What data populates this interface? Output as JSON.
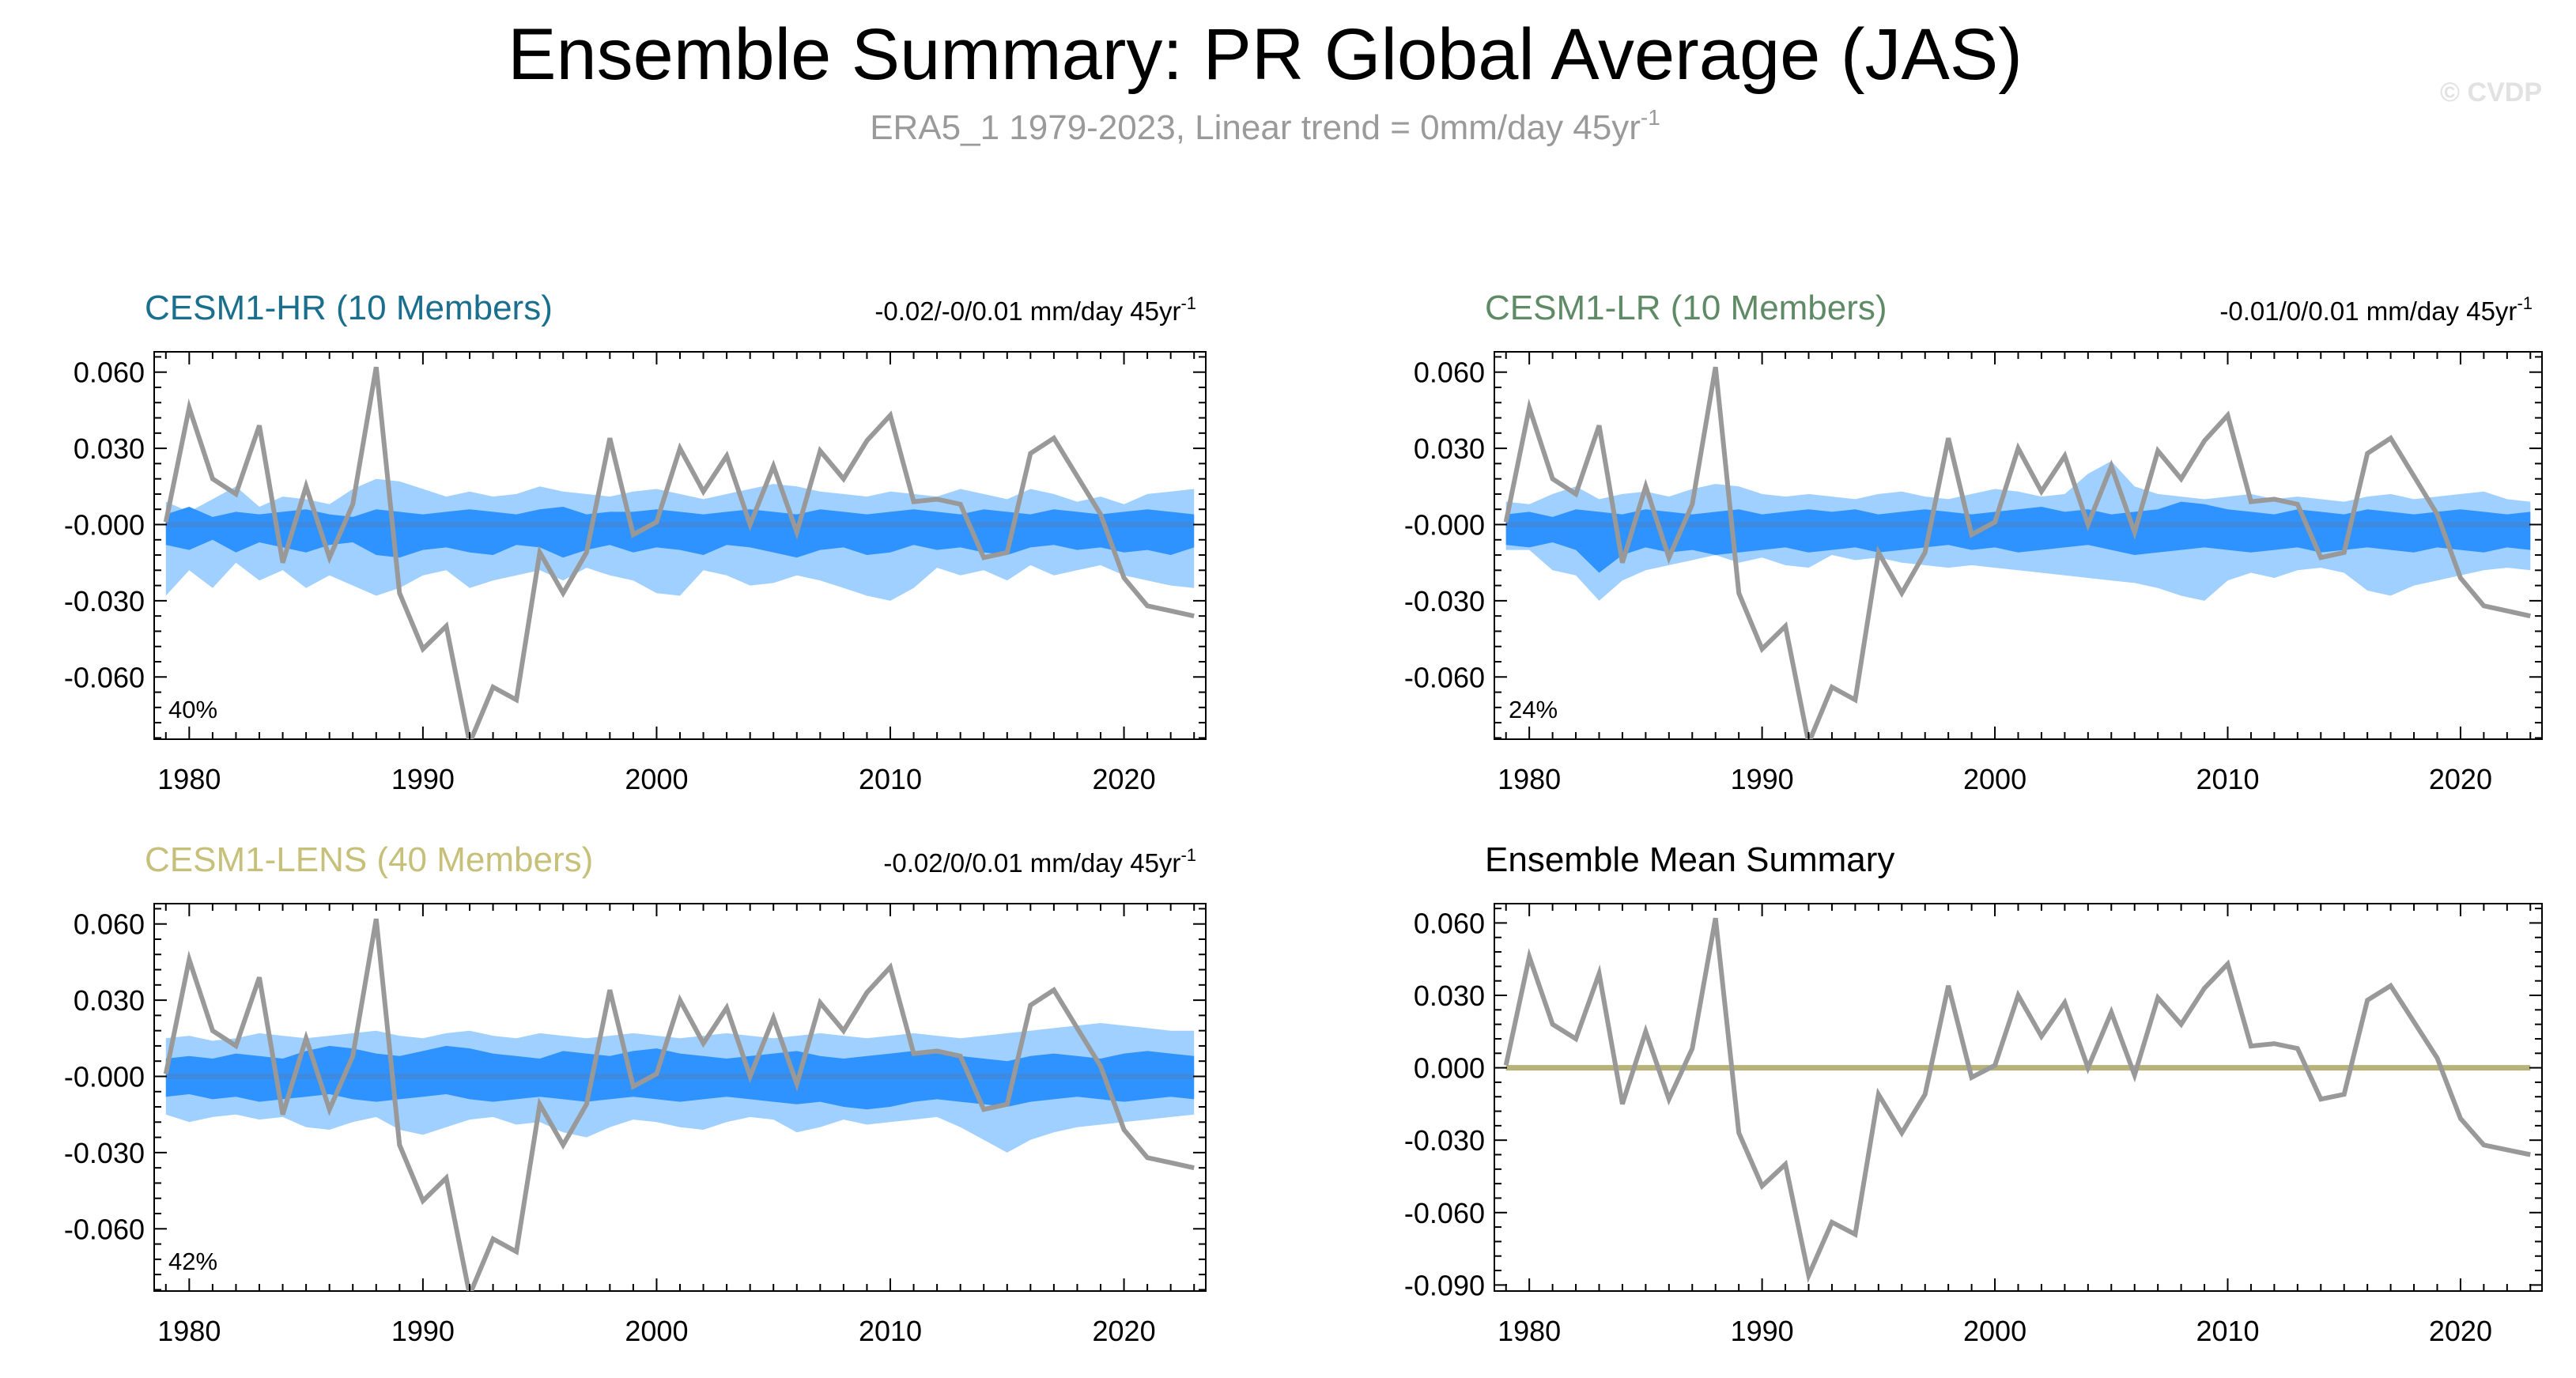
{
  "figure": {
    "title": "Ensemble Summary: PR Global Average (JAS)",
    "subtitle_main": "ERA5_1 1979-2023, Linear trend = 0mm/day 45yr",
    "subtitle_sup": "-1",
    "watermark": "© CVDP"
  },
  "colors": {
    "obs": "#999999",
    "band_outer": "#9fd0ff",
    "band_inner": "#2e92ff",
    "ens_mean_blue": "#3d8ae0",
    "ens_mean_olive": "#b7b27a",
    "hr_title": "#1a6e8e",
    "lr_title": "#5f8a66",
    "lens_title": "#c7c07a",
    "summary_title": "#000000"
  },
  "chart_data": [
    {
      "type": "area",
      "title": "CESM1-HR (10 Members)",
      "range_main": "-0.02/-0/0.01 mm/day 45yr",
      "range_sup": "-1",
      "percent_label": "40%",
      "xlim": [
        1978.5,
        2023.5
      ],
      "ylim": [
        -0.0845,
        0.068
      ],
      "xticks": [
        "1980",
        "1990",
        "2000",
        "2010",
        "2020"
      ],
      "yticks": [
        "0.060",
        "0.030",
        "-0.000",
        "-0.030",
        "-0.060"
      ],
      "x": [
        1979,
        1980,
        1981,
        1982,
        1983,
        1984,
        1985,
        1986,
        1987,
        1988,
        1989,
        1990,
        1991,
        1992,
        1993,
        1994,
        1995,
        1996,
        1997,
        1998,
        1999,
        2000,
        2001,
        2002,
        2003,
        2004,
        2005,
        2006,
        2007,
        2008,
        2009,
        2010,
        2011,
        2012,
        2013,
        2014,
        2015,
        2016,
        2017,
        2018,
        2019,
        2020,
        2021,
        2022,
        2023
      ],
      "observed": [
        0.001,
        0.046,
        0.018,
        0.012,
        0.039,
        -0.015,
        0.015,
        -0.013,
        0.008,
        0.062,
        -0.027,
        -0.049,
        -0.04,
        -0.086,
        -0.064,
        -0.069,
        -0.011,
        -0.027,
        -0.011,
        0.034,
        -0.004,
        0.001,
        0.03,
        0.013,
        0.027,
        0.0,
        0.023,
        -0.003,
        0.029,
        0.018,
        0.033,
        0.043,
        0.009,
        0.01,
        0.008,
        -0.013,
        -0.011,
        0.028,
        0.034,
        0.019,
        0.004,
        -0.021,
        -0.032,
        -0.034,
        -0.036
      ],
      "band_outer_upper": [
        0.009,
        0.005,
        0.01,
        0.015,
        0.007,
        0.011,
        0.01,
        0.008,
        0.014,
        0.018,
        0.017,
        0.014,
        0.011,
        0.013,
        0.011,
        0.012,
        0.015,
        0.013,
        0.012,
        0.011,
        0.013,
        0.014,
        0.012,
        0.01,
        0.012,
        0.014,
        0.016,
        0.015,
        0.013,
        0.012,
        0.011,
        0.013,
        0.012,
        0.011,
        0.014,
        0.012,
        0.01,
        0.014,
        0.012,
        0.009,
        0.011,
        0.008,
        0.012,
        0.013,
        0.014
      ],
      "band_outer_lower": [
        -0.028,
        -0.018,
        -0.025,
        -0.015,
        -0.022,
        -0.018,
        -0.025,
        -0.02,
        -0.024,
        -0.028,
        -0.025,
        -0.02,
        -0.018,
        -0.025,
        -0.022,
        -0.02,
        -0.018,
        -0.022,
        -0.017,
        -0.02,
        -0.022,
        -0.027,
        -0.028,
        -0.018,
        -0.02,
        -0.024,
        -0.023,
        -0.02,
        -0.022,
        -0.025,
        -0.028,
        -0.03,
        -0.025,
        -0.017,
        -0.02,
        -0.018,
        -0.022,
        -0.016,
        -0.02,
        -0.018,
        -0.016,
        -0.02,
        -0.022,
        -0.024,
        -0.025
      ],
      "band_inner_upper": [
        0.004,
        0.007,
        0.003,
        0.005,
        0.004,
        0.005,
        0.006,
        0.004,
        0.003,
        0.006,
        0.005,
        0.004,
        0.005,
        0.006,
        0.005,
        0.004,
        0.006,
        0.007,
        0.004,
        0.005,
        0.005,
        0.006,
        0.005,
        0.004,
        0.005,
        0.006,
        0.005,
        0.004,
        0.006,
        0.005,
        0.004,
        0.005,
        0.006,
        0.005,
        0.004,
        0.006,
        0.005,
        0.004,
        0.006,
        0.005,
        0.004,
        0.005,
        0.006,
        0.005,
        0.004
      ],
      "band_inner_lower": [
        -0.008,
        -0.01,
        -0.006,
        -0.011,
        -0.007,
        -0.009,
        -0.011,
        -0.008,
        -0.007,
        -0.012,
        -0.013,
        -0.01,
        -0.009,
        -0.011,
        -0.012,
        -0.008,
        -0.009,
        -0.013,
        -0.01,
        -0.008,
        -0.011,
        -0.009,
        -0.01,
        -0.012,
        -0.008,
        -0.009,
        -0.011,
        -0.013,
        -0.01,
        -0.009,
        -0.012,
        -0.011,
        -0.008,
        -0.01,
        -0.009,
        -0.011,
        -0.012,
        -0.009,
        -0.008,
        -0.01,
        -0.009,
        -0.011,
        -0.01,
        -0.012,
        -0.009
      ],
      "ensemble_mean": [
        0.0,
        0.0,
        0.0,
        0.0,
        0.0,
        0.0,
        0.0,
        0.0,
        0.0,
        0.0,
        0.0,
        0.0,
        0.0,
        0.0,
        0.0,
        0.0,
        0.0,
        0.0,
        0.0,
        0.0,
        0.0,
        0.0,
        0.0,
        0.0,
        0.0,
        0.0,
        0.0,
        0.0,
        0.0,
        0.0,
        0.0,
        0.0,
        0.0,
        0.0,
        0.0,
        0.0,
        0.0,
        0.0,
        0.0,
        0.0,
        0.0,
        0.0,
        0.0,
        0.0,
        0.0
      ]
    },
    {
      "type": "area",
      "title": "CESM1-LR (10 Members)",
      "range_main": "-0.01/0/0.01 mm/day 45yr",
      "range_sup": "-1",
      "percent_label": "24%",
      "xlim": [
        1978.5,
        2023.5
      ],
      "ylim": [
        -0.0845,
        0.068
      ],
      "xticks": [
        "1980",
        "1990",
        "2000",
        "2010",
        "2020"
      ],
      "yticks": [
        "0.060",
        "0.030",
        "-0.000",
        "-0.030",
        "-0.060"
      ],
      "x": [
        1979,
        1980,
        1981,
        1982,
        1983,
        1984,
        1985,
        1986,
        1987,
        1988,
        1989,
        1990,
        1991,
        1992,
        1993,
        1994,
        1995,
        1996,
        1997,
        1998,
        1999,
        2000,
        2001,
        2002,
        2003,
        2004,
        2005,
        2006,
        2007,
        2008,
        2009,
        2010,
        2011,
        2012,
        2013,
        2014,
        2015,
        2016,
        2017,
        2018,
        2019,
        2020,
        2021,
        2022,
        2023
      ],
      "observed": [
        0.001,
        0.046,
        0.018,
        0.012,
        0.039,
        -0.015,
        0.015,
        -0.013,
        0.008,
        0.062,
        -0.027,
        -0.049,
        -0.04,
        -0.086,
        -0.064,
        -0.069,
        -0.011,
        -0.027,
        -0.011,
        0.034,
        -0.004,
        0.001,
        0.03,
        0.013,
        0.027,
        0.0,
        0.023,
        -0.003,
        0.029,
        0.018,
        0.033,
        0.043,
        0.009,
        0.01,
        0.008,
        -0.013,
        -0.011,
        0.028,
        0.034,
        0.019,
        0.004,
        -0.021,
        -0.032,
        -0.034,
        -0.036
      ],
      "band_outer_upper": [
        0.009,
        0.008,
        0.012,
        0.015,
        0.01,
        0.012,
        0.013,
        0.011,
        0.014,
        0.016,
        0.015,
        0.012,
        0.011,
        0.012,
        0.011,
        0.01,
        0.012,
        0.013,
        0.011,
        0.01,
        0.012,
        0.014,
        0.013,
        0.011,
        0.012,
        0.02,
        0.025,
        0.015,
        0.012,
        0.011,
        0.01,
        0.011,
        0.012,
        0.01,
        0.011,
        0.01,
        0.009,
        0.011,
        0.012,
        0.01,
        0.011,
        0.012,
        0.013,
        0.01,
        0.009
      ],
      "band_outer_lower": [
        -0.01,
        -0.01,
        -0.018,
        -0.02,
        -0.03,
        -0.022,
        -0.018,
        -0.016,
        -0.014,
        -0.012,
        -0.015,
        -0.013,
        -0.016,
        -0.017,
        -0.012,
        -0.014,
        -0.013,
        -0.015,
        -0.016,
        -0.017,
        -0.016,
        -0.017,
        -0.018,
        -0.019,
        -0.02,
        -0.021,
        -0.022,
        -0.023,
        -0.025,
        -0.028,
        -0.03,
        -0.022,
        -0.019,
        -0.021,
        -0.018,
        -0.017,
        -0.019,
        -0.026,
        -0.028,
        -0.024,
        -0.022,
        -0.02,
        -0.018,
        -0.017,
        -0.018
      ],
      "band_inner_upper": [
        0.004,
        0.005,
        0.003,
        0.006,
        0.005,
        0.004,
        0.006,
        0.005,
        0.004,
        0.005,
        0.006,
        0.004,
        0.005,
        0.006,
        0.005,
        0.006,
        0.004,
        0.005,
        0.006,
        0.005,
        0.004,
        0.005,
        0.006,
        0.007,
        0.005,
        0.006,
        0.004,
        0.005,
        0.006,
        0.009,
        0.008,
        0.006,
        0.005,
        0.004,
        0.006,
        0.005,
        0.004,
        0.006,
        0.005,
        0.004,
        0.005,
        0.006,
        0.005,
        0.004,
        0.005
      ],
      "band_inner_lower": [
        -0.008,
        -0.009,
        -0.007,
        -0.01,
        -0.019,
        -0.012,
        -0.009,
        -0.011,
        -0.01,
        -0.012,
        -0.011,
        -0.01,
        -0.009,
        -0.011,
        -0.01,
        -0.009,
        -0.011,
        -0.01,
        -0.009,
        -0.008,
        -0.01,
        -0.009,
        -0.011,
        -0.01,
        -0.009,
        -0.008,
        -0.01,
        -0.012,
        -0.011,
        -0.01,
        -0.009,
        -0.01,
        -0.011,
        -0.01,
        -0.009,
        -0.011,
        -0.01,
        -0.009,
        -0.01,
        -0.011,
        -0.009,
        -0.01,
        -0.011,
        -0.009,
        -0.01
      ],
      "ensemble_mean": [
        0.0,
        0.0,
        0.0,
        0.0,
        0.0,
        0.0,
        0.0,
        0.0,
        0.0,
        0.0,
        0.0,
        0.0,
        0.0,
        0.0,
        0.0,
        0.0,
        0.0,
        0.0,
        0.0,
        0.0,
        0.0,
        0.0,
        0.0,
        0.0,
        0.0,
        0.0,
        0.0,
        0.0,
        0.0,
        0.0,
        0.0,
        0.0,
        0.0,
        0.0,
        0.0,
        0.0,
        0.0,
        0.0,
        0.0,
        0.0,
        0.0,
        0.0,
        0.0,
        0.0,
        0.0
      ]
    },
    {
      "type": "area",
      "title": "CESM1-LENS (40 Members)",
      "range_main": "-0.02/0/0.01 mm/day 45yr",
      "range_sup": "-1",
      "percent_label": "42%",
      "xlim": [
        1978.5,
        2023.5
      ],
      "ylim": [
        -0.0845,
        0.068
      ],
      "xticks": [
        "1980",
        "1990",
        "2000",
        "2010",
        "2020"
      ],
      "yticks": [
        "0.060",
        "0.030",
        "-0.000",
        "-0.030",
        "-0.060"
      ],
      "x": [
        1979,
        1980,
        1981,
        1982,
        1983,
        1984,
        1985,
        1986,
        1987,
        1988,
        1989,
        1990,
        1991,
        1992,
        1993,
        1994,
        1995,
        1996,
        1997,
        1998,
        1999,
        2000,
        2001,
        2002,
        2003,
        2004,
        2005,
        2006,
        2007,
        2008,
        2009,
        2010,
        2011,
        2012,
        2013,
        2014,
        2015,
        2016,
        2017,
        2018,
        2019,
        2020,
        2021,
        2022,
        2023
      ],
      "observed": [
        0.001,
        0.046,
        0.018,
        0.012,
        0.039,
        -0.015,
        0.015,
        -0.013,
        0.008,
        0.062,
        -0.027,
        -0.049,
        -0.04,
        -0.086,
        -0.064,
        -0.069,
        -0.011,
        -0.027,
        -0.011,
        0.034,
        -0.004,
        0.001,
        0.03,
        0.013,
        0.027,
        0.0,
        0.023,
        -0.003,
        0.029,
        0.018,
        0.033,
        0.043,
        0.009,
        0.01,
        0.008,
        -0.013,
        -0.011,
        0.028,
        0.034,
        0.019,
        0.004,
        -0.021,
        -0.032,
        -0.034,
        -0.036
      ],
      "band_outer_upper": [
        0.015,
        0.016,
        0.014,
        0.015,
        0.017,
        0.016,
        0.015,
        0.016,
        0.017,
        0.018,
        0.016,
        0.015,
        0.017,
        0.018,
        0.016,
        0.015,
        0.017,
        0.016,
        0.015,
        0.016,
        0.017,
        0.016,
        0.015,
        0.016,
        0.017,
        0.016,
        0.015,
        0.016,
        0.017,
        0.016,
        0.015,
        0.016,
        0.017,
        0.016,
        0.015,
        0.016,
        0.017,
        0.018,
        0.019,
        0.02,
        0.021,
        0.02,
        0.019,
        0.018,
        0.018
      ],
      "band_outer_lower": [
        -0.015,
        -0.018,
        -0.016,
        -0.015,
        -0.017,
        -0.016,
        -0.02,
        -0.021,
        -0.018,
        -0.016,
        -0.021,
        -0.023,
        -0.02,
        -0.017,
        -0.016,
        -0.019,
        -0.018,
        -0.022,
        -0.024,
        -0.02,
        -0.017,
        -0.018,
        -0.02,
        -0.021,
        -0.018,
        -0.016,
        -0.017,
        -0.022,
        -0.02,
        -0.017,
        -0.019,
        -0.018,
        -0.017,
        -0.016,
        -0.02,
        -0.025,
        -0.03,
        -0.025,
        -0.022,
        -0.02,
        -0.019,
        -0.018,
        -0.017,
        -0.016,
        -0.015
      ],
      "band_inner_upper": [
        0.007,
        0.008,
        0.007,
        0.009,
        0.008,
        0.007,
        0.01,
        0.012,
        0.011,
        0.009,
        0.008,
        0.01,
        0.012,
        0.011,
        0.009,
        0.008,
        0.007,
        0.01,
        0.009,
        0.008,
        0.01,
        0.011,
        0.009,
        0.008,
        0.007,
        0.008,
        0.009,
        0.01,
        0.008,
        0.007,
        0.008,
        0.009,
        0.01,
        0.009,
        0.008,
        0.007,
        0.006,
        0.008,
        0.009,
        0.008,
        0.007,
        0.009,
        0.01,
        0.009,
        0.008
      ],
      "band_inner_lower": [
        -0.008,
        -0.007,
        -0.009,
        -0.008,
        -0.01,
        -0.009,
        -0.008,
        -0.007,
        -0.009,
        -0.01,
        -0.009,
        -0.008,
        -0.007,
        -0.009,
        -0.01,
        -0.009,
        -0.008,
        -0.009,
        -0.01,
        -0.009,
        -0.008,
        -0.009,
        -0.01,
        -0.009,
        -0.008,
        -0.009,
        -0.01,
        -0.011,
        -0.01,
        -0.012,
        -0.013,
        -0.012,
        -0.01,
        -0.009,
        -0.01,
        -0.011,
        -0.012,
        -0.01,
        -0.009,
        -0.008,
        -0.009,
        -0.01,
        -0.009,
        -0.008,
        -0.009
      ],
      "ensemble_mean": [
        0.0,
        0.0,
        0.0,
        0.0,
        0.0,
        0.0,
        0.0,
        0.0,
        0.0,
        0.0,
        0.0,
        0.0,
        0.0,
        0.0,
        0.0,
        0.0,
        0.0,
        0.0,
        0.0,
        0.0,
        0.0,
        0.0,
        0.0,
        0.0,
        0.0,
        0.0,
        0.0,
        0.0,
        0.0,
        0.0,
        0.0,
        0.0,
        0.0,
        0.0,
        0.0,
        0.0,
        0.0,
        0.0,
        0.0,
        0.0,
        0.0,
        0.0,
        0.0,
        0.0,
        0.0
      ]
    },
    {
      "type": "line",
      "title": "Ensemble Mean Summary",
      "xlim": [
        1978.5,
        2023.5
      ],
      "ylim": [
        -0.0925,
        0.068
      ],
      "xticks": [
        "1980",
        "1990",
        "2000",
        "2010",
        "2020"
      ],
      "yticks": [
        "0.060",
        "0.030",
        "0.000",
        "-0.030",
        "-0.060",
        "-0.090"
      ],
      "x": [
        1979,
        1980,
        1981,
        1982,
        1983,
        1984,
        1985,
        1986,
        1987,
        1988,
        1989,
        1990,
        1991,
        1992,
        1993,
        1994,
        1995,
        1996,
        1997,
        1998,
        1999,
        2000,
        2001,
        2002,
        2003,
        2004,
        2005,
        2006,
        2007,
        2008,
        2009,
        2010,
        2011,
        2012,
        2013,
        2014,
        2015,
        2016,
        2017,
        2018,
        2019,
        2020,
        2021,
        2022,
        2023
      ],
      "observed": [
        0.001,
        0.046,
        0.018,
        0.012,
        0.039,
        -0.015,
        0.015,
        -0.013,
        0.008,
        0.062,
        -0.027,
        -0.049,
        -0.04,
        -0.086,
        -0.064,
        -0.069,
        -0.011,
        -0.027,
        -0.011,
        0.034,
        -0.004,
        0.001,
        0.03,
        0.013,
        0.027,
        0.0,
        0.023,
        -0.003,
        0.029,
        0.018,
        0.033,
        0.043,
        0.009,
        0.01,
        0.008,
        -0.013,
        -0.011,
        0.028,
        0.034,
        0.019,
        0.004,
        -0.021,
        -0.032,
        -0.034,
        -0.036
      ],
      "ensemble_mean": [
        0.0,
        0.0,
        0.0,
        0.0,
        0.0,
        0.0,
        0.0,
        0.0,
        0.0,
        0.0,
        0.0,
        0.0,
        0.0,
        0.0,
        0.0,
        0.0,
        0.0,
        0.0,
        0.0,
        0.0,
        0.0,
        0.0,
        0.0,
        0.0,
        0.0,
        0.0,
        0.0,
        0.0,
        0.0,
        0.0,
        0.0,
        0.0,
        0.0,
        0.0,
        0.0,
        0.0,
        0.0,
        0.0,
        0.0,
        0.0,
        0.0,
        0.0,
        0.0,
        0.0,
        0.0
      ]
    }
  ]
}
